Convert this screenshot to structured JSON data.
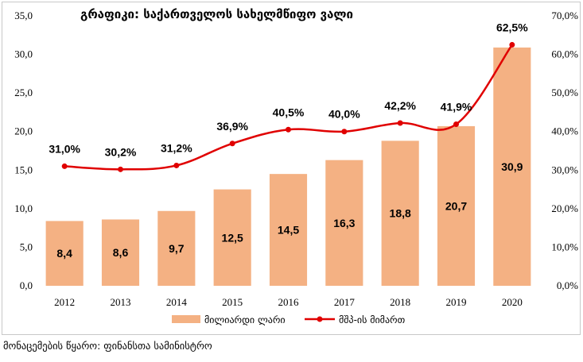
{
  "chart_data": {
    "type": "bar+line",
    "title": "გრაფიკი: საქართველოს სახელმწიფო ვალი",
    "categories": [
      "2012",
      "2013",
      "2014",
      "2015",
      "2016",
      "2017",
      "2018",
      "2019",
      "2020"
    ],
    "series": [
      {
        "name": "მილიარდი ლარი",
        "type": "bar",
        "axis": "left",
        "color": "#f4b183",
        "values": [
          8.4,
          8.6,
          9.7,
          12.5,
          14.5,
          16.3,
          18.8,
          20.7,
          30.9
        ],
        "labels": [
          "8,4",
          "8,6",
          "9,7",
          "12,5",
          "14,5",
          "16,3",
          "18,8",
          "20,7",
          "30,9"
        ]
      },
      {
        "name": "მშპ-ის მიმართ",
        "type": "line",
        "axis": "right",
        "color": "#e00000",
        "values": [
          31.0,
          30.2,
          31.2,
          36.9,
          40.5,
          40.0,
          42.2,
          41.9,
          62.5
        ],
        "labels": [
          "31,0%",
          "30,2%",
          "31,2%",
          "36,9%",
          "40,5%",
          "40,0%",
          "42,2%",
          "41,9%",
          "62,5%"
        ]
      }
    ],
    "y_left": {
      "ylim": [
        0,
        35
      ],
      "ticks": [
        "0,0",
        "5,0",
        "10,0",
        "15,0",
        "20,0",
        "25,0",
        "30,0",
        "35,0"
      ]
    },
    "y_right": {
      "ylim": [
        0,
        70
      ],
      "ticks": [
        "0,0%",
        "10,0%",
        "20,0%",
        "30,0%",
        "40,0%",
        "50,0%",
        "60,0%",
        "70,0%"
      ]
    },
    "legend_position": "bottom",
    "grid": false
  },
  "source": "მონაცემების წყარო: ფინანსთა სამინისტრო"
}
